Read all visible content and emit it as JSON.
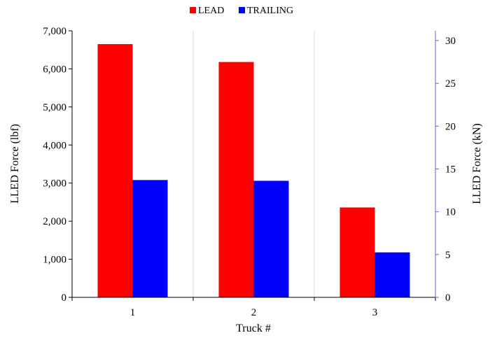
{
  "chart_data": {
    "type": "bar",
    "categories": [
      "1",
      "2",
      "3"
    ],
    "series": [
      {
        "name": "LEAD",
        "values": [
          6650,
          6180,
          2360
        ],
        "color": "#ff0000"
      },
      {
        "name": "TRAILING",
        "values": [
          3080,
          3060,
          1180
        ],
        "color": "#0000ff"
      }
    ],
    "xlabel": "Truck #",
    "ylabel": "LLED Force (lbf)",
    "ylabel_right": "LLED Force (kN)",
    "ylim": [
      0,
      7000
    ],
    "ylim_right": [
      0,
      31.14
    ],
    "yticks": [
      0,
      1000,
      2000,
      3000,
      4000,
      5000,
      6000,
      7000
    ],
    "ytick_labels": [
      "0",
      "1,000",
      "2,000",
      "3,000",
      "4,000",
      "5,000",
      "6,000",
      "7,000"
    ],
    "yticks_right": [
      0,
      5,
      10,
      15,
      20,
      25,
      30
    ],
    "ytick_labels_right": [
      "0",
      "5",
      "10",
      "15",
      "20",
      "25",
      "30"
    ],
    "grid": {
      "vertical": true,
      "horizontal": false
    },
    "legend_position": "top-center",
    "axis_color_right": "#6666cc"
  }
}
